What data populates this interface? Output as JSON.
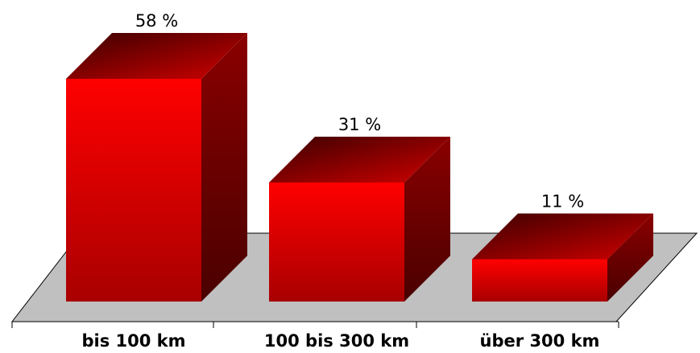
{
  "chart_data": {
    "type": "bar3d",
    "categories": [
      "bis 100 km",
      "100 bis 300 km",
      "über 300 km"
    ],
    "values": [
      58,
      31,
      11
    ],
    "value_labels": [
      "58 %",
      "31 %",
      "11 %"
    ],
    "color": "#ff0000"
  }
}
